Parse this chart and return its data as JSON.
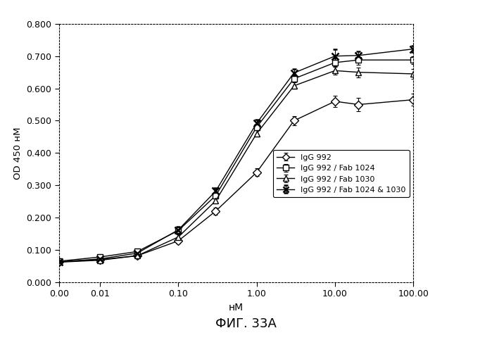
{
  "x": [
    0.003,
    0.01,
    0.03,
    0.1,
    0.3,
    1.0,
    3.0,
    10.0,
    20.0,
    100.0
  ],
  "IgG992": [
    0.063,
    0.07,
    0.082,
    0.128,
    0.22,
    0.34,
    0.5,
    0.56,
    0.55,
    0.565
  ],
  "IgG992_err": [
    0.005,
    0.005,
    0.005,
    0.008,
    0.01,
    0.012,
    0.015,
    0.018,
    0.02,
    0.018
  ],
  "IgG992_Fab1024": [
    0.065,
    0.078,
    0.095,
    0.16,
    0.268,
    0.48,
    0.63,
    0.68,
    0.688,
    0.688
  ],
  "IgG992_Fab1024_err": [
    0.005,
    0.007,
    0.005,
    0.01,
    0.008,
    0.01,
    0.01,
    0.012,
    0.015,
    0.012
  ],
  "IgG992_Fab1030": [
    0.062,
    0.068,
    0.082,
    0.14,
    0.252,
    0.46,
    0.608,
    0.655,
    0.65,
    0.645
  ],
  "IgG992_Fab1030_err": [
    0.005,
    0.005,
    0.005,
    0.008,
    0.008,
    0.01,
    0.01,
    0.012,
    0.015,
    0.015
  ],
  "IgG992_Fab1024_1030": [
    0.063,
    0.072,
    0.09,
    0.162,
    0.282,
    0.492,
    0.648,
    0.7,
    0.702,
    0.722
  ],
  "IgG992_Fab1024_1030_err": [
    0.004,
    0.005,
    0.006,
    0.009,
    0.009,
    0.012,
    0.012,
    0.022,
    0.012,
    0.01
  ],
  "color": "#000000",
  "ylabel": "OD 450 нМ",
  "xlabel": "нМ",
  "ylim": [
    0.0,
    0.8
  ],
  "ytick_labels": [
    "0.000",
    "0.100",
    "0.200",
    "0.300",
    "0.400",
    "0.500",
    "0.600",
    "0.700",
    "0.800"
  ],
  "ytick_vals": [
    0.0,
    0.1,
    0.2,
    0.3,
    0.4,
    0.5,
    0.6,
    0.7,
    0.8
  ],
  "xtick_vals": [
    0.003,
    0.01,
    0.1,
    1.0,
    10.0,
    100.0
  ],
  "xtick_labels": [
    "0.00",
    "0.01",
    "0.10",
    "1.00",
    "10.00",
    "100.00"
  ],
  "legend_labels": [
    "IgG 992",
    "IgG 992 / Fab 1024",
    "IgG 992 / Fab 1030",
    "IgG 992 / Fab 1024 & 1030"
  ],
  "caption": "ФИГ. 33A",
  "background_color": "#ffffff"
}
